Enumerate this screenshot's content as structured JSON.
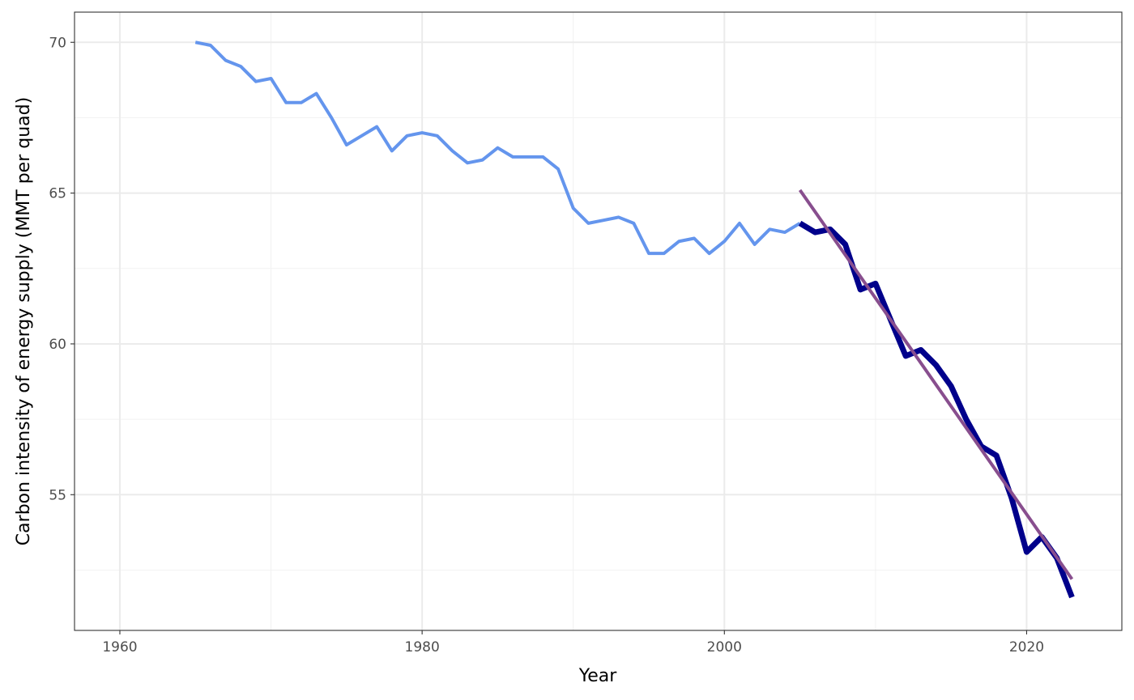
{
  "chart_data": {
    "type": "line",
    "title": "",
    "xlabel": "Year",
    "ylabel": "Carbon intensity of energy supply (MMT per quad)",
    "xlim": [
      1957,
      2026.3
    ],
    "ylim": [
      50.5,
      71.0
    ],
    "x_ticks": [
      1960,
      1980,
      2000,
      2020
    ],
    "y_ticks": [
      55,
      60,
      65,
      70
    ],
    "x_minor_ticks": [
      1970,
      1990,
      2010
    ],
    "y_minor_ticks": [
      52.5,
      57.5,
      62.5,
      67.5
    ],
    "grid": true,
    "legend": "none",
    "series": [
      {
        "color": "#6495ED",
        "style": "thin",
        "x": [
          1965,
          1966,
          1967,
          1968,
          1969,
          1970,
          1971,
          1972,
          1973,
          1974,
          1975,
          1976,
          1977,
          1978,
          1979,
          1980,
          1981,
          1982,
          1983,
          1984,
          1985,
          1986,
          1987,
          1988,
          1989,
          1990,
          1991,
          1992,
          1993,
          1994,
          1995,
          1996,
          1997,
          1998,
          1999,
          2000,
          2001,
          2002,
          2003,
          2004,
          2005
        ],
        "y": [
          70.0,
          69.9,
          69.4,
          69.2,
          68.7,
          68.8,
          68.0,
          68.0,
          68.3,
          67.5,
          66.6,
          66.9,
          67.2,
          66.4,
          66.9,
          67.0,
          66.9,
          66.4,
          66.0,
          66.1,
          66.5,
          66.2,
          66.2,
          66.2,
          65.8,
          64.5,
          64.0,
          64.1,
          64.2,
          64.0,
          63.0,
          63.0,
          63.4,
          63.5,
          63.0,
          63.4,
          64.0,
          63.3,
          63.8,
          63.7,
          64.0
        ]
      },
      {
        "color": "#00008B",
        "style": "thick",
        "x": [
          2005,
          2006,
          2007,
          2008,
          2009,
          2010,
          2011,
          2012,
          2013,
          2014,
          2015,
          2016,
          2017,
          2018,
          2019,
          2020,
          2021,
          2022,
          2023
        ],
        "y": [
          64.0,
          63.7,
          63.8,
          63.3,
          61.8,
          62.0,
          60.8,
          59.6,
          59.8,
          59.3,
          58.6,
          57.5,
          56.6,
          56.3,
          54.9,
          53.1,
          53.6,
          52.9,
          51.6
        ]
      },
      {
        "color": "#884E8E",
        "style": "trend",
        "x": [
          2005,
          2023
        ],
        "y": [
          65.1,
          52.2
        ]
      }
    ]
  }
}
